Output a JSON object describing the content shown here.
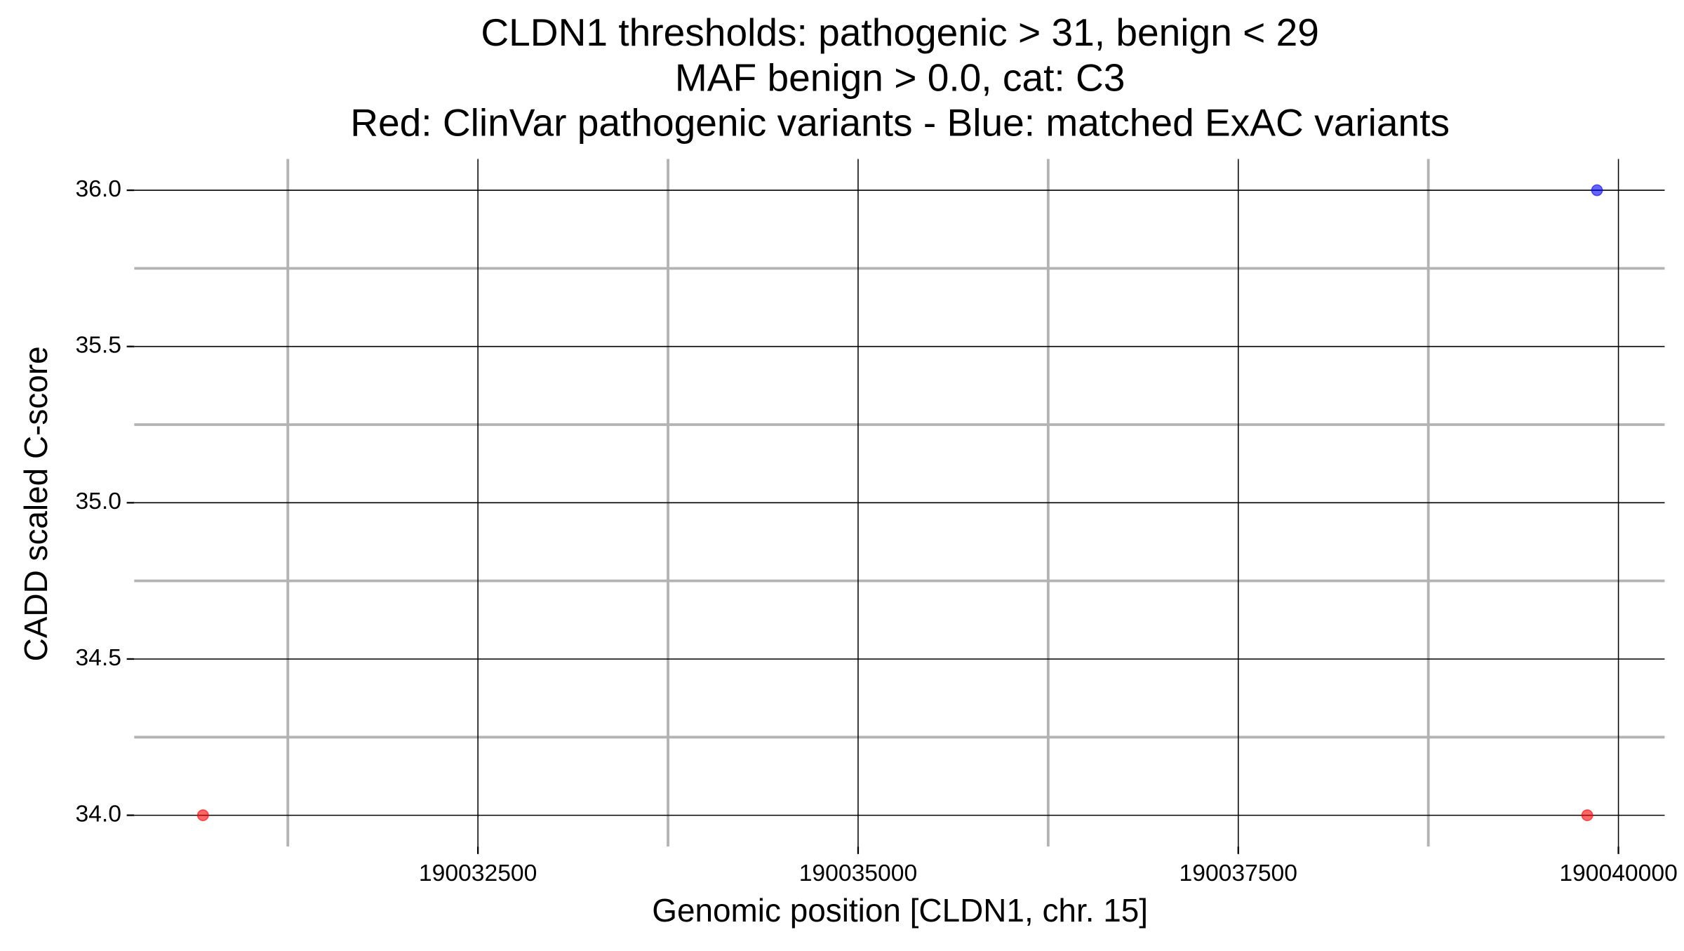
{
  "chart_data": {
    "type": "scatter",
    "title": [
      "CLDN1 thresholds: pathogenic > 31, benign < 29",
      "MAF benign > 0.0, cat: C3",
      "Red: ClinVar pathogenic variants - Blue: matched ExAC variants"
    ],
    "x_label": "Genomic position [CLDN1, chr. 15]",
    "y_label": "CADD scaled C-score",
    "series": [
      {
        "color": "#ff0000",
        "x": [
          190030692,
          190039795
        ],
        "values": [
          34.0,
          34.0
        ]
      },
      {
        "color": "#0000ff",
        "x": [
          190039859
        ],
        "values": [
          36.0
        ]
      }
    ],
    "xlim": [
      190030240,
      190040304
    ],
    "xticks": [
      190032500,
      190035000,
      190037500,
      190040000
    ],
    "ylim": [
      33.9,
      36.1
    ],
    "yticks": [
      {
        "value": 34,
        "label": "34.0"
      },
      34.5,
      {
        "value": 35,
        "label": "35.0"
      },
      35.5,
      {
        "value": 36,
        "label": "36.0"
      }
    ],
    "grid": true
  }
}
